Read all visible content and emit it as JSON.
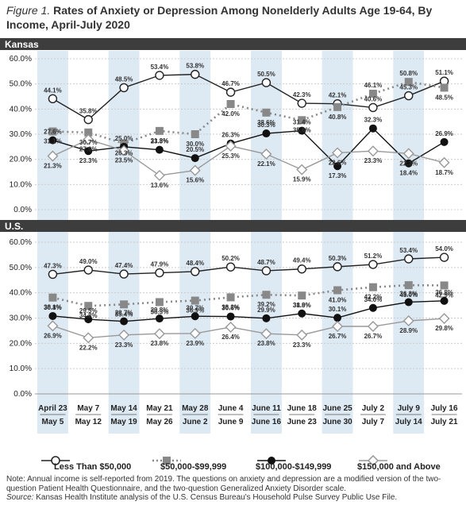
{
  "title": {
    "figure_label": "Figure 1.",
    "text": "Rates of Anxiety or Depression Among Nonelderly Adults Age 19-64, By Income, April-July 2020"
  },
  "chart_data": [
    {
      "type": "line",
      "panel_label": "Kansas",
      "ylim": [
        0,
        60
      ],
      "yticks": [
        "0.0%",
        "10.0%",
        "20.0%",
        "30.0%",
        "40.0%",
        "50.0%",
        "60.0%"
      ],
      "grid": true,
      "series": [
        {
          "name": "Less Than $50,000",
          "values": [
            44.1,
            35.8,
            48.5,
            53.4,
            53.8,
            46.7,
            50.5,
            42.3,
            42.1,
            40.6,
            45.3,
            51.1
          ]
        },
        {
          "name": "$50,000-$99,999",
          "values": [
            31.1,
            30.7,
            26.3,
            31.3,
            30.0,
            42.0,
            38.6,
            35.6,
            40.8,
            46.1,
            50.8,
            48.5
          ]
        },
        {
          "name": "$100,000-$149,999",
          "values": [
            27.6,
            23.3,
            25.0,
            23.8,
            20.5,
            26.3,
            30.3,
            31.4,
            17.3,
            32.3,
            18.4,
            26.9
          ]
        },
        {
          "name": "$150,000 and Above",
          "values": [
            21.3,
            27.9,
            23.5,
            13.6,
            15.6,
            25.3,
            22.1,
            15.9,
            22.6,
            23.3,
            22.3,
            18.7
          ]
        }
      ]
    },
    {
      "type": "line",
      "panel_label": "U.S.",
      "ylim": [
        0,
        60
      ],
      "yticks": [
        "0.0%",
        "10.0%",
        "20.0%",
        "30.0%",
        "40.0%",
        "50.0%",
        "60.0%"
      ],
      "grid": true,
      "series": [
        {
          "name": "Less Than $50,000",
          "values": [
            47.3,
            49.0,
            47.4,
            47.9,
            48.4,
            50.2,
            48.7,
            49.4,
            50.3,
            51.2,
            53.4,
            54.0
          ]
        },
        {
          "name": "$50,000-$99,999",
          "values": [
            38.1,
            34.8,
            35.4,
            36.3,
            36.9,
            38.2,
            39.2,
            38.9,
            41.0,
            42.2,
            43.0,
            42.9
          ]
        },
        {
          "name": "$100,000-$149,999",
          "values": [
            30.8,
            29.5,
            28.7,
            29.8,
            30.7,
            30.6,
            29.9,
            31.8,
            30.1,
            34.0,
            36.3,
            36.8
          ]
        },
        {
          "name": "$150,000 and Above",
          "values": [
            26.9,
            22.2,
            23.3,
            23.8,
            23.9,
            26.4,
            23.8,
            23.3,
            26.7,
            26.7,
            28.9,
            29.8
          ]
        }
      ]
    }
  ],
  "categories": [
    [
      "April 23",
      "May 5"
    ],
    [
      "May 7",
      "May 12"
    ],
    [
      "May 14",
      "May 19"
    ],
    [
      "May 21",
      "May 26"
    ],
    [
      "May 28",
      "June 2"
    ],
    [
      "June 4",
      "June 9"
    ],
    [
      "June 11",
      "June 16"
    ],
    [
      "June 18",
      "June 23"
    ],
    [
      "June 25",
      "June 30"
    ],
    [
      "July 2",
      "July 7"
    ],
    [
      "July 9",
      "July 14"
    ],
    [
      "July 16",
      "July 21"
    ]
  ],
  "legend": {
    "s1": "Less Than $50,000",
    "s2": "$50,000-$99,999",
    "s3": "$100,000-$149,999",
    "s4": "$150,000 and Above"
  },
  "note": {
    "text": "Note: Annual income is self-reported from 2019. The questions on anxiety and depression are a modified version of the two-question Patient Health Questionnaire, and the two-question Generalized Anxiety Disorder scale.",
    "source_label": "Source:",
    "source_text": "Kansas Health Institute analysis of the U.S. Census Bureau's Household Pulse Survey Public Use File."
  },
  "colors": {
    "header_bg": "#3d3d3d",
    "band": "#dde9f3",
    "grid": "#cccccc",
    "series1": "#222222",
    "series2": "#888888",
    "series3": "#111111",
    "series4": "#999999"
  }
}
